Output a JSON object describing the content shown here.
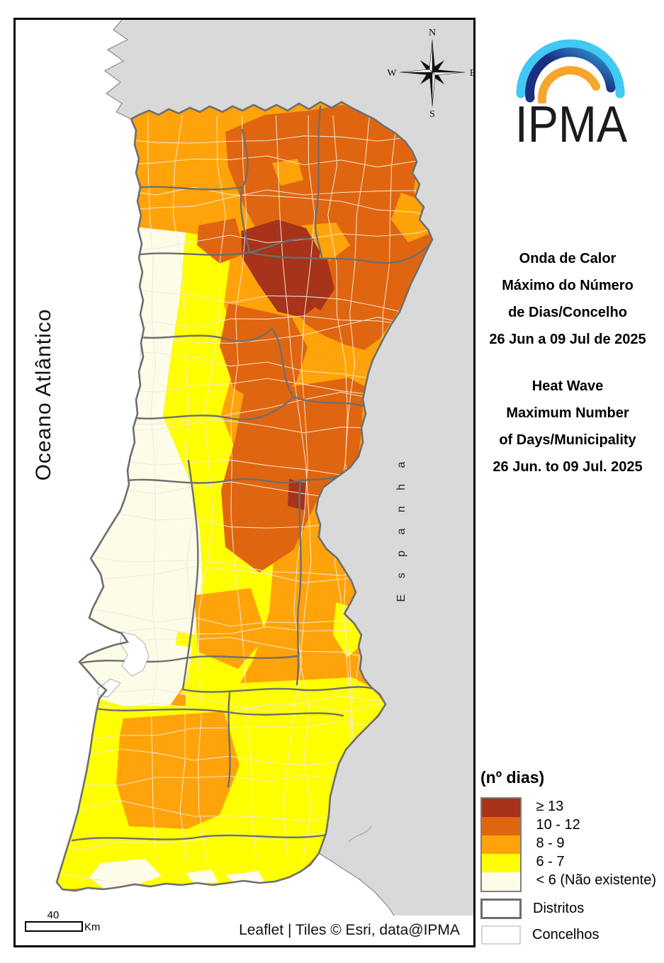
{
  "map": {
    "ocean_label": "Oceano Atlântico",
    "spain_label": "E s p a n h a",
    "compass": {
      "north": "N",
      "south": "S",
      "east": "E",
      "west": "W"
    },
    "scale_bar": {
      "distance": "40",
      "unit": "Km"
    },
    "attribution": "Leaflet | Tiles © Esri, data@IPMA"
  },
  "logo": {
    "wordmark": "IPMA"
  },
  "titles": {
    "pt": [
      "Onda de Calor",
      "Máximo do Número",
      "de Dias/Concelho",
      "26 Jun a 09 Jul de 2025"
    ],
    "en": [
      "Heat Wave",
      "Maximum Number",
      "of Days/Municipality",
      "26 Jun. to 09 Jul. 2025"
    ]
  },
  "legend": {
    "title": "(nº dias)",
    "classes": [
      {
        "label": "≥ 13",
        "color": "#A6331A"
      },
      {
        "label": "10 - 12",
        "color": "#E06510"
      },
      {
        "label": "8 - 9",
        "color": "#FFA30A"
      },
      {
        "label": "6 - 7",
        "color": "#FFFF00"
      },
      {
        "label": "< 6 (Não existente)",
        "color": "#FDFCE8"
      }
    ],
    "outline_items": [
      {
        "label": "Distritos"
      },
      {
        "label": "Concelhos"
      }
    ]
  },
  "colors": {
    "spain_land": "#D9D9D9",
    "ocean": "#FFFFFF",
    "district_border": "#6E6E6E",
    "municipality_border": "#F0EAD6",
    "frame": "#000000",
    "logo_light_blue": "#41C8F5",
    "logo_dark_blue": "#1B2F7E",
    "logo_mid_blue": "#2F9FDC",
    "logo_orange": "#F5A62B"
  }
}
